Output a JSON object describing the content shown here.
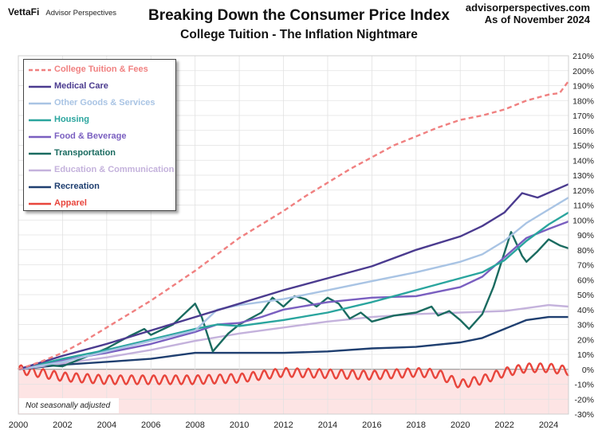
{
  "header": {
    "logo_brand": "VettaFi",
    "logo_sub": "Advisor Perspectives",
    "site": "advisorperspectives.com",
    "as_of": "As of November 2024"
  },
  "note": "Not seasonally adjusted",
  "chart_data": {
    "type": "line",
    "title": "Breaking Down the Consumer Price Index",
    "subtitle": "College Tuition - The Inflation Nightmare",
    "x_range": [
      2000,
      2024.9
    ],
    "x_ticks": [
      "2000",
      "2002",
      "2004",
      "2006",
      "2008",
      "2010",
      "2012",
      "2014",
      "2016",
      "2018",
      "2020",
      "2022",
      "2024"
    ],
    "y_range": [
      -30,
      210
    ],
    "y_ticks": [
      "210%",
      "200%",
      "190%",
      "180%",
      "170%",
      "160%",
      "150%",
      "140%",
      "130%",
      "120%",
      "110%",
      "100%",
      "90%",
      "80%",
      "70%",
      "60%",
      "50%",
      "40%",
      "30%",
      "20%",
      "10%",
      "0%",
      "-10%",
      "-20%",
      "-30%"
    ],
    "y_unit": "%",
    "grid": true,
    "legend_position": "top-left",
    "series": [
      {
        "name": "College Tuition & Fees",
        "color": "#f08080",
        "dashed": true,
        "points": [
          [
            2000,
            0
          ],
          [
            2001,
            5
          ],
          [
            2002,
            11
          ],
          [
            2003,
            19
          ],
          [
            2004,
            28
          ],
          [
            2005,
            37
          ],
          [
            2006,
            46
          ],
          [
            2007,
            56
          ],
          [
            2008,
            66
          ],
          [
            2009,
            77
          ],
          [
            2010,
            88
          ],
          [
            2011,
            97
          ],
          [
            2012,
            106
          ],
          [
            2013,
            116
          ],
          [
            2014,
            125
          ],
          [
            2015,
            134
          ],
          [
            2016,
            142
          ],
          [
            2017,
            150
          ],
          [
            2018,
            156
          ],
          [
            2019,
            162
          ],
          [
            2020,
            167
          ],
          [
            2021,
            170
          ],
          [
            2022,
            174
          ],
          [
            2023,
            180
          ],
          [
            2024,
            184
          ],
          [
            2024.5,
            185
          ],
          [
            2024.9,
            193
          ]
        ]
      },
      {
        "name": "Medical Care",
        "color": "#4b3b8f",
        "points": [
          [
            2000,
            0
          ],
          [
            2002,
            9
          ],
          [
            2004,
            17
          ],
          [
            2006,
            26
          ],
          [
            2008,
            35
          ],
          [
            2010,
            44
          ],
          [
            2012,
            53
          ],
          [
            2014,
            61
          ],
          [
            2016,
            69
          ],
          [
            2018,
            80
          ],
          [
            2020,
            89
          ],
          [
            2021,
            96
          ],
          [
            2022,
            105
          ],
          [
            2022.8,
            118
          ],
          [
            2023.5,
            115
          ],
          [
            2024.9,
            124
          ]
        ]
      },
      {
        "name": "Other Goods & Services",
        "color": "#a9c4e4",
        "points": [
          [
            2000,
            0
          ],
          [
            2002,
            5
          ],
          [
            2004,
            12
          ],
          [
            2006,
            19
          ],
          [
            2008,
            26
          ],
          [
            2009,
            40
          ],
          [
            2010,
            43
          ],
          [
            2012,
            47
          ],
          [
            2014,
            53
          ],
          [
            2016,
            59
          ],
          [
            2018,
            65
          ],
          [
            2020,
            72
          ],
          [
            2021,
            77
          ],
          [
            2022,
            86
          ],
          [
            2023,
            98
          ],
          [
            2024,
            107
          ],
          [
            2024.9,
            115
          ]
        ]
      },
      {
        "name": "Housing",
        "color": "#2aa59e",
        "points": [
          [
            2000,
            0
          ],
          [
            2002,
            7
          ],
          [
            2004,
            13
          ],
          [
            2006,
            20
          ],
          [
            2008,
            27
          ],
          [
            2009,
            30
          ],
          [
            2010,
            29
          ],
          [
            2012,
            33
          ],
          [
            2014,
            38
          ],
          [
            2016,
            45
          ],
          [
            2018,
            53
          ],
          [
            2020,
            61
          ],
          [
            2021,
            65
          ],
          [
            2022,
            73
          ],
          [
            2023,
            86
          ],
          [
            2024,
            97
          ],
          [
            2024.9,
            105
          ]
        ]
      },
      {
        "name": "Food & Beverage",
        "color": "#7a5fc0",
        "points": [
          [
            2000,
            0
          ],
          [
            2002,
            6
          ],
          [
            2004,
            11
          ],
          [
            2006,
            17
          ],
          [
            2008,
            25
          ],
          [
            2009,
            30
          ],
          [
            2010,
            31
          ],
          [
            2011,
            35
          ],
          [
            2012,
            40
          ],
          [
            2014,
            45
          ],
          [
            2016,
            48
          ],
          [
            2018,
            49
          ],
          [
            2020,
            55
          ],
          [
            2021,
            62
          ],
          [
            2022,
            75
          ],
          [
            2023,
            88
          ],
          [
            2024,
            94
          ],
          [
            2024.9,
            99
          ]
        ]
      },
      {
        "name": "Transportation",
        "color": "#1a6b60",
        "points": [
          [
            2000,
            0
          ],
          [
            2001,
            3
          ],
          [
            2002,
            2
          ],
          [
            2003,
            8
          ],
          [
            2004,
            14
          ],
          [
            2005,
            22
          ],
          [
            2005.7,
            27
          ],
          [
            2006,
            23
          ],
          [
            2007,
            30
          ],
          [
            2008,
            44
          ],
          [
            2008.3,
            35
          ],
          [
            2008.8,
            12
          ],
          [
            2009.5,
            24
          ],
          [
            2010,
            30
          ],
          [
            2011,
            38
          ],
          [
            2011.5,
            48
          ],
          [
            2012,
            42
          ],
          [
            2012.5,
            49
          ],
          [
            2013,
            47
          ],
          [
            2013.5,
            42
          ],
          [
            2014,
            48
          ],
          [
            2014.5,
            44
          ],
          [
            2015,
            34
          ],
          [
            2015.5,
            38
          ],
          [
            2016,
            32
          ],
          [
            2017,
            36
          ],
          [
            2018,
            38
          ],
          [
            2018.7,
            42
          ],
          [
            2019,
            36
          ],
          [
            2019.5,
            39
          ],
          [
            2020,
            33
          ],
          [
            2020.4,
            27
          ],
          [
            2021,
            37
          ],
          [
            2021.5,
            55
          ],
          [
            2022.3,
            92
          ],
          [
            2022.8,
            76
          ],
          [
            2023,
            72
          ],
          [
            2023.5,
            79
          ],
          [
            2024,
            87
          ],
          [
            2024.5,
            83
          ],
          [
            2024.9,
            81
          ]
        ]
      },
      {
        "name": "Education & Communication",
        "color": "#c4b2dc",
        "points": [
          [
            2000,
            0
          ],
          [
            2002,
            4
          ],
          [
            2004,
            8
          ],
          [
            2006,
            13
          ],
          [
            2008,
            19
          ],
          [
            2010,
            24
          ],
          [
            2012,
            28
          ],
          [
            2014,
            32
          ],
          [
            2016,
            35
          ],
          [
            2018,
            37
          ],
          [
            2020,
            38
          ],
          [
            2022,
            39
          ],
          [
            2023,
            41
          ],
          [
            2024,
            43
          ],
          [
            2024.9,
            42
          ]
        ]
      },
      {
        "name": "Recreation",
        "color": "#1f3f70",
        "points": [
          [
            2000,
            0
          ],
          [
            2002,
            3
          ],
          [
            2004,
            5
          ],
          [
            2006,
            7
          ],
          [
            2008,
            11
          ],
          [
            2010,
            11
          ],
          [
            2012,
            11
          ],
          [
            2014,
            12
          ],
          [
            2016,
            14
          ],
          [
            2018,
            15
          ],
          [
            2020,
            18
          ],
          [
            2021,
            21
          ],
          [
            2022,
            27
          ],
          [
            2023,
            33
          ],
          [
            2024,
            35
          ],
          [
            2024.9,
            35
          ]
        ]
      },
      {
        "name": "Apparel",
        "color": "#e8453c",
        "seasonal_amplitude": 3,
        "points": [
          [
            2000,
            0
          ],
          [
            2002,
            -5
          ],
          [
            2004,
            -7
          ],
          [
            2006,
            -7
          ],
          [
            2008,
            -7
          ],
          [
            2010,
            -6
          ],
          [
            2012,
            -2
          ],
          [
            2014,
            -3
          ],
          [
            2016,
            -4
          ],
          [
            2018,
            -2
          ],
          [
            2019,
            -3
          ],
          [
            2020,
            -10
          ],
          [
            2021,
            -7
          ],
          [
            2022,
            -2
          ],
          [
            2023,
            1
          ],
          [
            2024,
            1
          ],
          [
            2024.9,
            -1
          ]
        ]
      }
    ]
  }
}
